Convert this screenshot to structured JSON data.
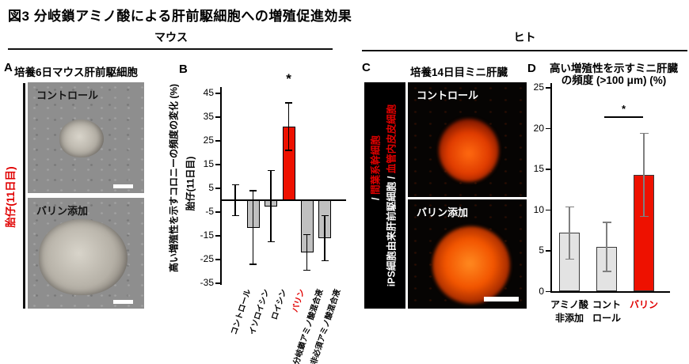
{
  "figure_title": "図3 分岐鎖アミノ酸による肝前駆細胞への増殖促進効果",
  "sections": {
    "mouse_label": "マウス",
    "human_label": "ヒト"
  },
  "colors": {
    "accent_red": "#e00000",
    "bar_red": "#ee1100",
    "bar_gray": "#c0c0c0",
    "bar_light_gray": "#e3e3e3"
  },
  "panel_a": {
    "label": "A",
    "header": "培養6日マウス肝前駆細胞",
    "side_label": "胎仔(11日目)",
    "image_top_caption": "コントロール",
    "image_bottom_caption": "バリン添加"
  },
  "panel_b": {
    "label": "B",
    "ylabel": "高い増殖性を示すコロニーの頻度の変化 (%)",
    "ylabel_sub": "胎仔(11日目)"
  },
  "panel_c": {
    "label": "C",
    "header": "培養14日目ミニ肝臓",
    "side_label_line1_white": "iPS細胞由来肝前駆細胞 / ",
    "side_label_line1_red": "血管内皮皮細胞",
    "side_label_line2_white": "/ ",
    "side_label_line2_red": "間葉系幹細胞",
    "image_top_caption": "コントロール",
    "image_bottom_caption": "バリン添加"
  },
  "panel_d": {
    "label": "D",
    "title_line1": "高い増殖性を示すミニ肝臓",
    "title_line2": "の頻度 (>100 μm) (%)"
  },
  "chart_data": [
    {
      "id": "chart-b",
      "type": "bar",
      "title": "",
      "ylabel": "高い増殖性を示すコロニーの頻度の変化 (%)",
      "ylabel2": "胎仔(11日目)",
      "categories": [
        "コントロール",
        "イソロイシン",
        "ロイシン",
        "バリン",
        "分岐鎖アミノ酸混合液",
        "非必須アミノ酸混合液"
      ],
      "values": [
        0,
        -11.5,
        -2.5,
        31,
        -22,
        -16
      ],
      "errors": [
        6.5,
        15.5,
        15,
        10,
        7.5,
        9.5
      ],
      "bar_color": "#c0c0c0",
      "highlight_index": 3,
      "highlight_color": "#ee1100",
      "significance": {
        "label": "*",
        "index": 3
      },
      "yticks": [
        45,
        35,
        25,
        15,
        5,
        -5,
        -15,
        -25,
        -35
      ],
      "ylim": [
        -35,
        45
      ],
      "grid": false,
      "legend": false
    },
    {
      "id": "chart-d",
      "type": "bar",
      "title": "高い増殖性を示すミニ肝臓の頻度 (>100 μm) (%)",
      "categories": [
        "アミノ酸\n非添加",
        "コント\nロール",
        "バリン"
      ],
      "values": [
        7.2,
        5.5,
        14.3
      ],
      "errors": [
        3.2,
        3.0,
        5.1
      ],
      "bar_color": "#e3e3e3",
      "highlight_index": 2,
      "highlight_color": "#ee1100",
      "significance": {
        "label": "*",
        "from": 1,
        "to": 2
      },
      "yticks": [
        0,
        5,
        10,
        15,
        20,
        25
      ],
      "ylim": [
        0,
        25
      ],
      "grid": false,
      "legend": false
    }
  ]
}
